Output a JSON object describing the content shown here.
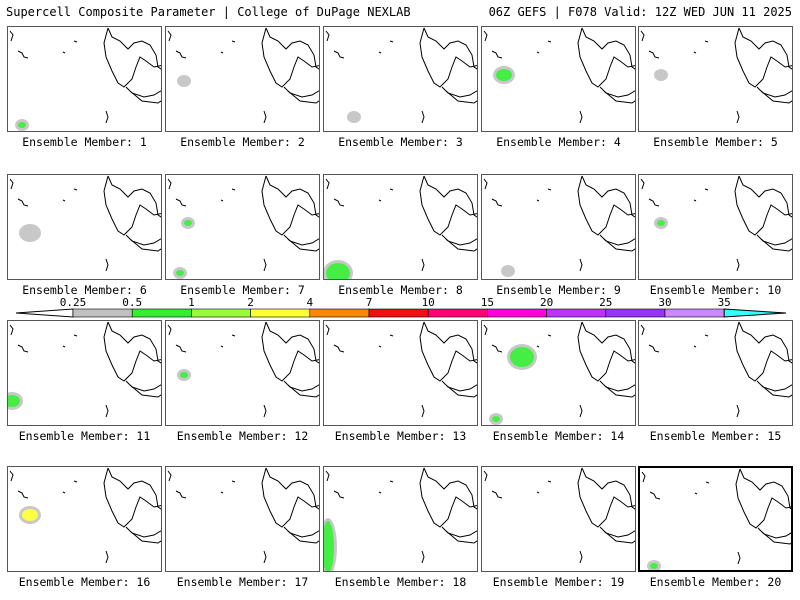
{
  "header": {
    "left": "Supercell Composite Parameter | College of DuPage NEXLAB",
    "right": "06Z GEFS | F078 Valid: 12Z WED JUN 11 2025"
  },
  "members": [
    {
      "label": "Ensemble Member: 1",
      "blobs": [
        {
          "level": "green",
          "at": "southwest-corner",
          "size": "tiny"
        }
      ]
    },
    {
      "label": "Ensemble Member: 2",
      "blobs": [
        {
          "level": "gray",
          "at": "west-central",
          "size": "tiny"
        }
      ]
    },
    {
      "label": "Ensemble Member: 3",
      "blobs": [
        {
          "level": "gray",
          "at": "south-central",
          "size": "tiny"
        }
      ]
    },
    {
      "label": "Ensemble Member: 4",
      "blobs": [
        {
          "level": "green",
          "at": "northwest",
          "size": "small"
        }
      ]
    },
    {
      "label": "Ensemble Member: 5",
      "blobs": [
        {
          "level": "gray",
          "at": "northwest",
          "size": "tiny"
        }
      ]
    },
    {
      "label": "Ensemble Member: 6",
      "blobs": [
        {
          "level": "gray",
          "at": "west",
          "size": "small"
        }
      ]
    },
    {
      "label": "Ensemble Member: 7",
      "blobs": [
        {
          "level": "green",
          "at": "northwest",
          "size": "tiny"
        },
        {
          "level": "green",
          "at": "southwest-corner",
          "size": "tiny"
        }
      ]
    },
    {
      "label": "Ensemble Member: 8",
      "blobs": [
        {
          "level": "green",
          "at": "southwest-corner",
          "size": "medium"
        }
      ]
    },
    {
      "label": "Ensemble Member: 9",
      "blobs": [
        {
          "level": "gray",
          "at": "south",
          "size": "tiny"
        }
      ]
    },
    {
      "label": "Ensemble Member: 10",
      "blobs": [
        {
          "level": "green",
          "at": "northwest",
          "size": "tiny"
        }
      ]
    },
    {
      "label": "Ensemble Member: 11",
      "blobs": [
        {
          "level": "green",
          "at": "west-edge",
          "size": "small"
        }
      ]
    },
    {
      "label": "Ensemble Member: 12",
      "blobs": [
        {
          "level": "green",
          "at": "west-central",
          "size": "tiny"
        }
      ]
    },
    {
      "label": "Ensemble Member: 13",
      "blobs": []
    },
    {
      "label": "Ensemble Member: 14",
      "blobs": [
        {
          "level": "green",
          "at": "north-central",
          "size": "medium"
        },
        {
          "level": "green",
          "at": "southwest-corner",
          "size": "tiny"
        }
      ]
    },
    {
      "label": "Ensemble Member: 15",
      "blobs": []
    },
    {
      "label": "Ensemble Member: 16",
      "blobs": [
        {
          "level": "yellow",
          "at": "northwest",
          "size": "small"
        }
      ]
    },
    {
      "label": "Ensemble Member: 17",
      "blobs": []
    },
    {
      "label": "Ensemble Member: 18",
      "blobs": [
        {
          "level": "green",
          "at": "west-edge",
          "size": "large"
        }
      ]
    },
    {
      "label": "Ensemble Member: 19",
      "blobs": []
    },
    {
      "label": "Ensemble Member: 20",
      "blobs": [
        {
          "level": "green",
          "at": "southwest-corner",
          "size": "tiny"
        }
      ],
      "highlighted": true
    }
  ],
  "colorbar": {
    "ticks": [
      "0.25",
      "0.5",
      "1",
      "2",
      "4",
      "7",
      "10",
      "15",
      "20",
      "25",
      "30",
      "35"
    ],
    "colors": [
      "#ffffff",
      "#c0c0c0",
      "#33ee33",
      "#99ff33",
      "#ffff33",
      "#ff8800",
      "#ee1111",
      "#ff0077",
      "#ff00dd",
      "#bb33ff",
      "#9933ff",
      "#cc88ff",
      "#33ffff"
    ]
  }
}
